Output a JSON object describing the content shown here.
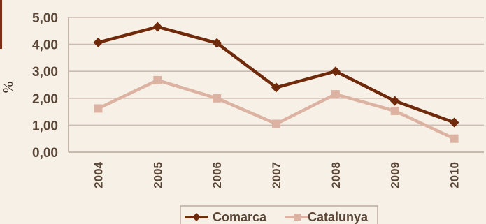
{
  "chart_data": {
    "type": "line",
    "categories": [
      "2004",
      "2005",
      "2006",
      "2007",
      "2008",
      "2009",
      "2010"
    ],
    "series": [
      {
        "name": "Comarca",
        "values": [
          4.07,
          4.65,
          4.05,
          2.4,
          3.0,
          1.9,
          1.1
        ],
        "color": "#6f2a0c",
        "marker": "diamond"
      },
      {
        "name": "Catalunya",
        "values": [
          1.62,
          2.67,
          2.0,
          1.05,
          2.15,
          1.53,
          0.5
        ],
        "color": "#dcb3a2",
        "marker": "square"
      }
    ],
    "ylabel": "%",
    "ylim": [
      0,
      5
    ],
    "yticks": [
      "0,00",
      "1,00",
      "2,00",
      "3,00",
      "4,00",
      "5,00"
    ],
    "grid": true,
    "legend_position": "bottom"
  }
}
